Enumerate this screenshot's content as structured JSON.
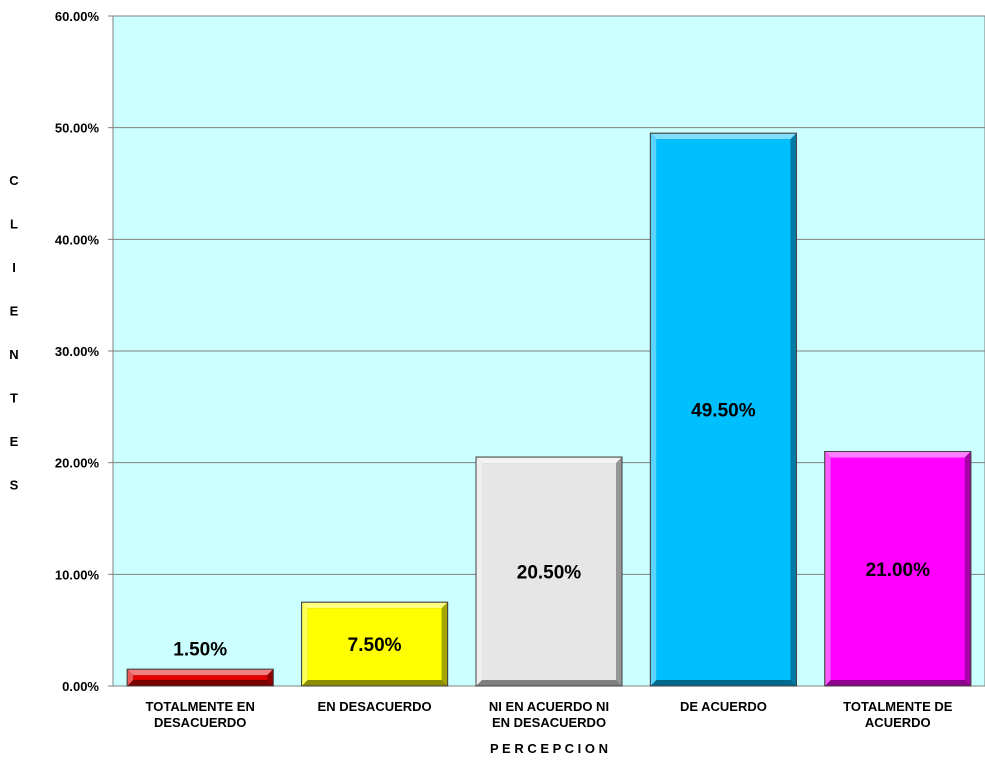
{
  "chart_data": {
    "type": "bar",
    "categories": [
      [
        "TOTALMENTE EN",
        "DESACUERDO"
      ],
      [
        "EN DESACUERDO"
      ],
      [
        "NI EN ACUERDO NI",
        "EN DESACUERDO"
      ],
      [
        "DE ACUERDO"
      ],
      [
        "TOTALMENTE DE",
        "ACUERDO"
      ]
    ],
    "values": [
      1.5,
      7.5,
      20.5,
      49.5,
      21.0
    ],
    "data_labels": [
      "1.50%",
      "7.50%",
      "20.50%",
      "49.50%",
      "21.00%"
    ],
    "colors": [
      "#e00000",
      "#ffff00",
      "#e6e6e6",
      "#00bfff",
      "#ff00ff"
    ],
    "ylim": [
      0,
      60
    ],
    "yticks": [
      "0.00%",
      "10.00%",
      "20.00%",
      "30.00%",
      "40.00%",
      "50.00%",
      "60.00%"
    ],
    "ylabel": "CLIENTES",
    "xlabel": "P E R C E P C I O N",
    "plot_background": "#ccffff",
    "grid": true
  }
}
